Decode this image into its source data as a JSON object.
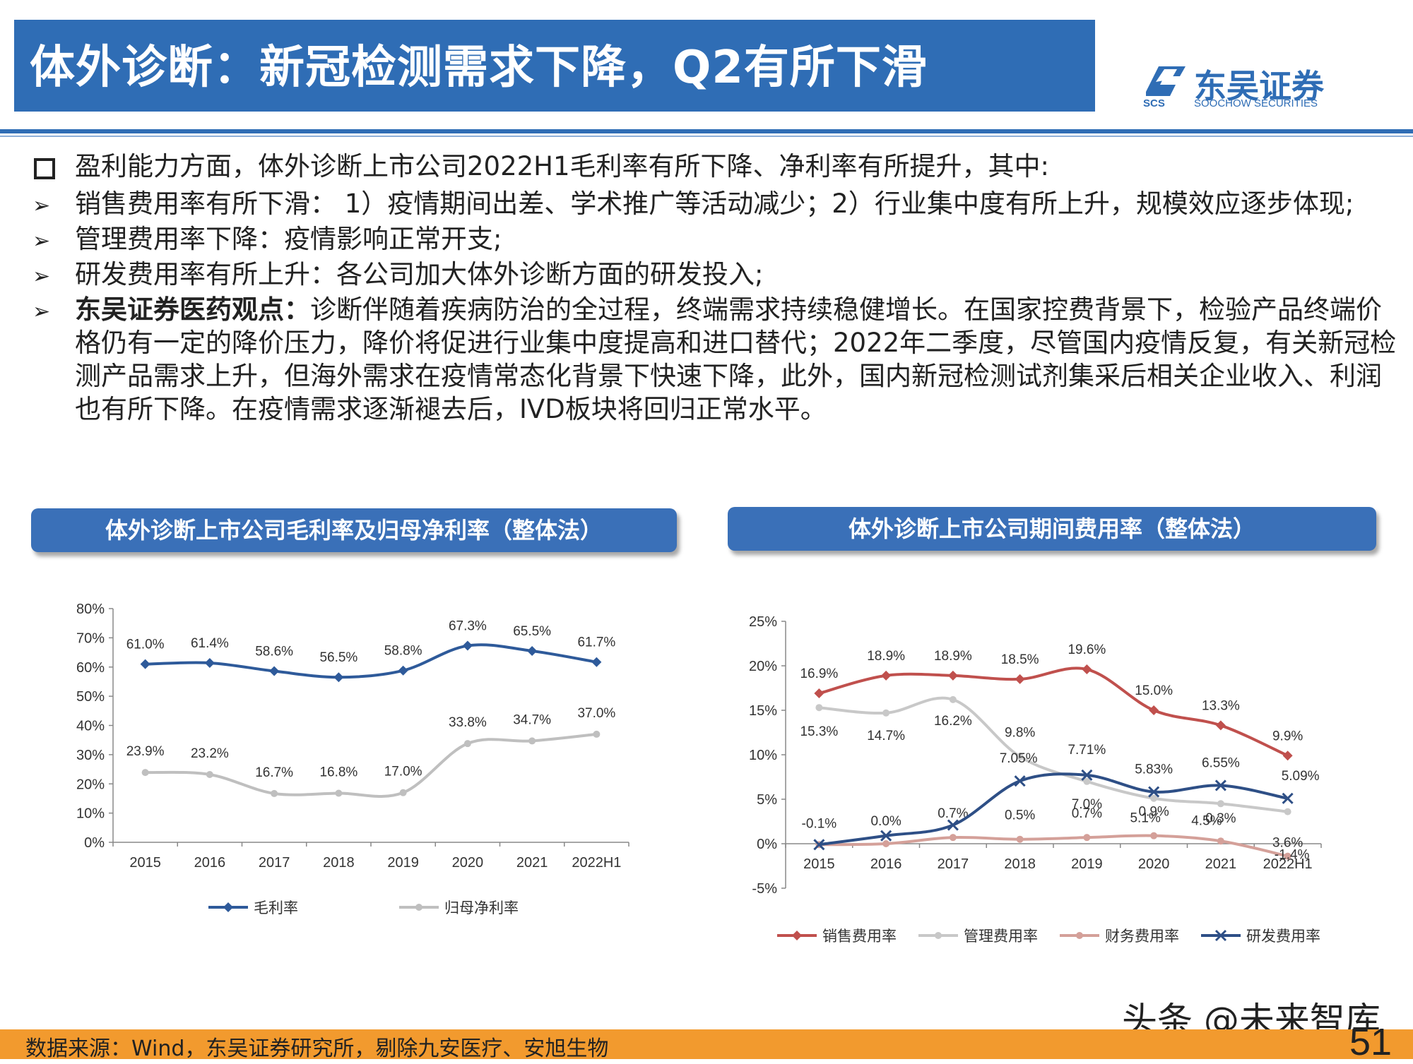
{
  "title": "体外诊断：新冠检测需求下降，Q2有所下滑",
  "logo": {
    "cn": "东吴证券",
    "en": "SOOCHOW SECURITIES",
    "abbr": "SCS"
  },
  "bullets": [
    {
      "marker": "square",
      "text": "盈利能力方面，体外诊断上市公司2022H1毛利率有所下降、净利率有所提升，其中:"
    },
    {
      "marker": "arrow",
      "text": "销售费用率有所下滑： 1）疫情期间出差、学术推广等活动减少；2）行业集中度有所上升，规模效应逐步体现;"
    },
    {
      "marker": "arrow",
      "text": "管理费用率下降：疫情影响正常开支;"
    },
    {
      "marker": "arrow",
      "text": "研发费用率有所上升：各公司加大体外诊断方面的研发投入;"
    },
    {
      "marker": "arrow",
      "bold": "东吴证券医药观点：",
      "text": "诊断伴随着疾病防治的全过程，终端需求持续稳健增长。在国家控费背景下，检验产品终端价格仍有一定的降价压力，降价将促进行业集中度提高和进口替代；2022年二季度，尽管国内疫情反复，有关新冠检测产品需求上升，但海外需求在疫情常态化背景下快速下降，此外，国内新冠检测试剂集采后相关企业收入、利润也有所下降。在疫情需求逐渐褪去后，IVD板块将回归正常水平。"
    }
  ],
  "chart_data": [
    {
      "type": "line",
      "title": "体外诊断上市公司毛利率及归母净利率（整体法）",
      "categories": [
        "2015",
        "2016",
        "2017",
        "2018",
        "2019",
        "2020",
        "2021",
        "2022H1"
      ],
      "ylim": [
        0,
        80
      ],
      "yticks": [
        "0%",
        "10%",
        "20%",
        "30%",
        "40%",
        "50%",
        "60%",
        "70%",
        "80%"
      ],
      "series": [
        {
          "name": "毛利率",
          "color": "#2e5a9a",
          "marker": "diamond",
          "values": [
            61.0,
            61.4,
            58.6,
            56.5,
            58.8,
            67.3,
            65.5,
            61.7
          ],
          "labels": [
            "61.0%",
            "61.4%",
            "58.6%",
            "56.5%",
            "58.8%",
            "67.3%",
            "65.5%",
            "61.7%"
          ]
        },
        {
          "name": "归母净利率",
          "color": "#bfbfbf",
          "marker": "circle",
          "values": [
            23.9,
            23.2,
            16.7,
            16.8,
            17.0,
            33.8,
            34.7,
            37.0
          ],
          "labels": [
            "23.9%",
            "23.2%",
            "16.7%",
            "16.8%",
            "17.0%",
            "33.8%",
            "34.7%",
            "37.0%"
          ]
        }
      ],
      "legend": "bottom"
    },
    {
      "type": "line",
      "title": "体外诊断上市公司期间费用率（整体法）",
      "categories": [
        "2015",
        "2016",
        "2017",
        "2018",
        "2019",
        "2020",
        "2021",
        "2022H1"
      ],
      "ylim": [
        -5,
        25
      ],
      "yticks": [
        "-5%",
        "0%",
        "5%",
        "10%",
        "15%",
        "20%",
        "25%"
      ],
      "series": [
        {
          "name": "销售费用率",
          "color": "#c0504d",
          "marker": "diamond",
          "values": [
            16.9,
            18.9,
            18.9,
            18.5,
            19.6,
            15.0,
            13.3,
            9.9
          ],
          "labels": [
            "16.9%",
            "18.9%",
            "18.9%",
            "18.5%",
            "19.6%",
            "15.0%",
            "13.3%",
            "9.9%"
          ]
        },
        {
          "name": "管理费用率",
          "color": "#c8c8c8",
          "marker": "circle",
          "values": [
            15.3,
            14.7,
            16.2,
            9.8,
            7.0,
            5.1,
            4.5,
            3.6
          ],
          "labels": [
            "15.3%",
            "14.7%",
            "16.2%",
            "9.8%",
            "7.0%",
            "5.1%",
            "4.5%",
            "3.6%"
          ]
        },
        {
          "name": "财务费用率",
          "color": "#d4a099",
          "marker": "circle",
          "values": [
            -0.1,
            0.0,
            0.7,
            0.5,
            0.7,
            0.9,
            0.3,
            -1.4
          ],
          "labels": [
            "-0.1%",
            "0.0%",
            "0.7%",
            "0.5%",
            "0.7%",
            "0.9%",
            "0.3%",
            "-1.4%"
          ]
        },
        {
          "name": "研发费用率",
          "color": "#2e4f86",
          "marker": "x",
          "values": [
            -0.1,
            0.9,
            2.1,
            7.05,
            7.71,
            5.83,
            6.55,
            5.09
          ],
          "labels": [
            "",
            "",
            "",
            "7.05%",
            "7.71%",
            "5.83%",
            "6.55%",
            "5.09%"
          ]
        }
      ],
      "legend": "bottom"
    }
  ],
  "footer": {
    "source": "数据来源：Wind，东吴证券研究所，剔除九安医疗、安旭生物",
    "page": "51",
    "watermark": "头条 @未来智库"
  }
}
